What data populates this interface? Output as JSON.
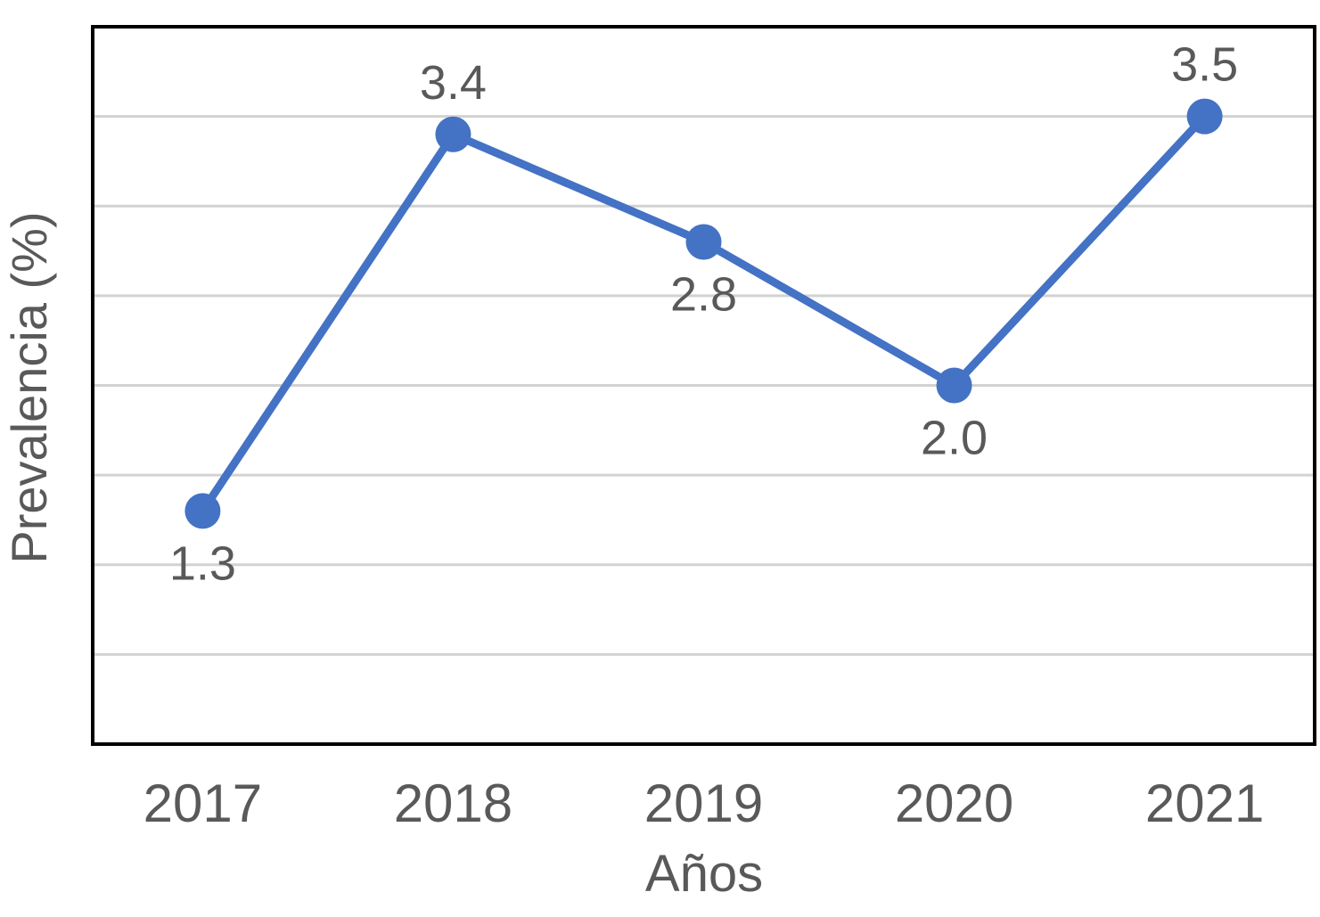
{
  "chart_data": {
    "type": "line",
    "categories": [
      "2017",
      "2018",
      "2019",
      "2020",
      "2021"
    ],
    "series": [
      {
        "name": "Prevalencia",
        "values": [
          1.3,
          3.4,
          2.8,
          2.0,
          3.5
        ]
      }
    ],
    "data_labels": [
      "1.3",
      "3.4",
      "2.8",
      "2.0",
      "3.5"
    ],
    "data_label_placement": [
      "below",
      "above",
      "below",
      "below",
      "above"
    ],
    "title": "",
    "xlabel": "Años",
    "ylabel": "Prevalencia (%)",
    "ylim": [
      0,
      4
    ],
    "gridline_step": 0.5,
    "grid": "horizontal-only",
    "legend": "none",
    "y_tick_labels_visible": false
  },
  "colors": {
    "series": "#4472C4",
    "gridline": "#D2D2D2",
    "plot_border": "#000000",
    "label_text": "#595959",
    "background": "#FFFFFF"
  }
}
